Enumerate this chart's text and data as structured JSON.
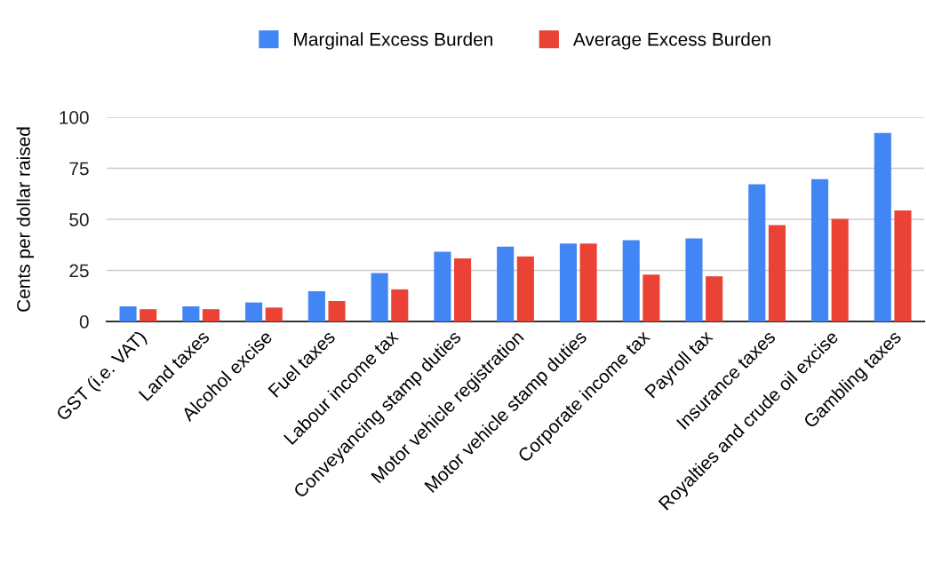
{
  "chart_data": {
    "type": "bar",
    "ylabel": "Cents per dollar raised",
    "categories": [
      "GST (i.e. VAT)",
      "Land taxes",
      "Alcohol excise",
      "Fuel taxes",
      "Labour income tax",
      "Conveyancing stamp duties",
      "Motor vehicle registration",
      "Motor vehicle stamp duties",
      "Corporate income tax",
      "Payroll tax",
      "Insurance taxes",
      "Royalties and crude oil excise",
      "Gambling taxes"
    ],
    "series": [
      {
        "name": "Marginal Excess Burden",
        "color": "#4285f4",
        "values": [
          7.4,
          7.4,
          9.3,
          14.8,
          23.7,
          34.1,
          36.6,
          38.2,
          39.8,
          40.6,
          67.2,
          69.7,
          92.3
        ]
      },
      {
        "name": "Average Excess Burden",
        "color": "#ea4335",
        "values": [
          6.0,
          6.0,
          6.8,
          10.0,
          15.7,
          30.9,
          31.8,
          38.2,
          22.9,
          22.1,
          47.2,
          50.2,
          54.4
        ]
      }
    ],
    "ylim": [
      0,
      100
    ],
    "yticks": [
      0,
      25,
      50,
      75,
      100
    ],
    "grid": "y",
    "legend": "top"
  }
}
